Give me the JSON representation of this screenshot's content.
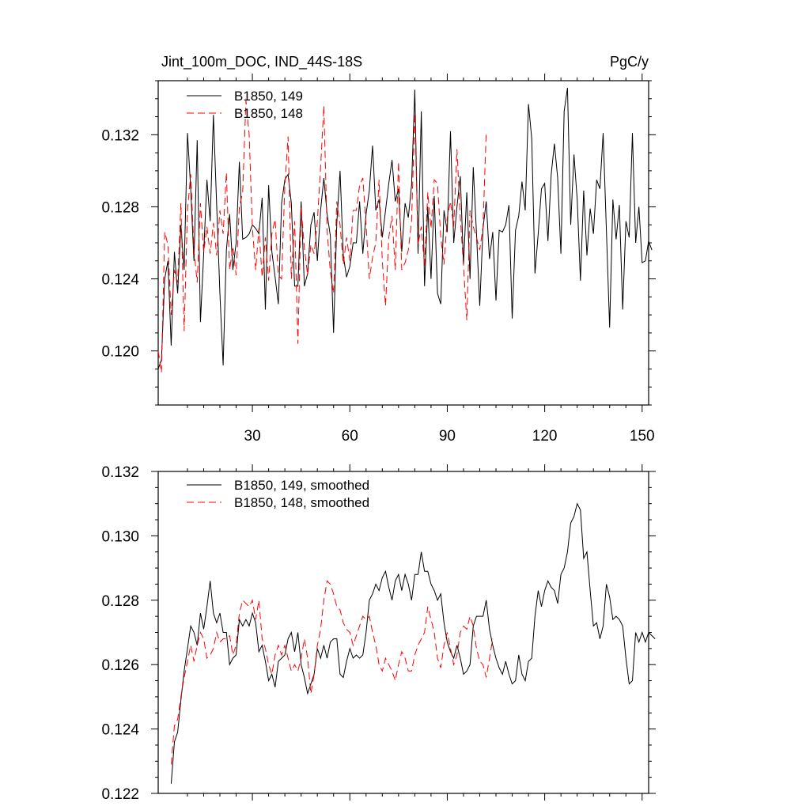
{
  "header": {
    "title": "Jint_100m_DOC, IND_44S-18S",
    "units": "PgC/y"
  },
  "colors": {
    "series_149": "#000000",
    "series_148": "#ff0000"
  },
  "chart_data": [
    {
      "type": "line",
      "title": "Jint_100m_DOC, IND_44S-18S",
      "xlabel": "",
      "ylabel": "",
      "xlim": [
        1,
        152
      ],
      "ylim": [
        0.117,
        0.135
      ],
      "xticks": [
        30,
        60,
        90,
        120,
        150
      ],
      "yticks": [
        0.12,
        0.124,
        0.128,
        0.132
      ],
      "legend_position": "top-left",
      "series": [
        {
          "name": "B1850, 149",
          "color": "#000000",
          "dash": "solid",
          "x_start": 1,
          "values": [
            0.119,
            0.1195,
            0.124,
            0.125,
            0.1203,
            0.1255,
            0.1232,
            0.127,
            0.1245,
            0.1321,
            0.129,
            0.125,
            0.1317,
            0.1216,
            0.1254,
            0.1295,
            0.1272,
            0.1331,
            0.1281,
            0.1232,
            0.1192,
            0.1256,
            0.1276,
            0.1245,
            0.126,
            0.1305,
            0.1262,
            0.1263,
            0.1265,
            0.127,
            0.1268,
            0.1265,
            0.1285,
            0.1223,
            0.1292,
            0.1255,
            0.1241,
            0.1226,
            0.1282,
            0.1295,
            0.1298,
            0.1282,
            0.1236,
            0.1236,
            0.1283,
            0.1236,
            0.1243,
            0.127,
            0.1277,
            0.125,
            0.1278,
            0.1296,
            0.1276,
            0.1264,
            0.121,
            0.1271,
            0.13,
            0.1253,
            0.1241,
            0.1247,
            0.126,
            0.126,
            0.1283,
            0.1254,
            0.1276,
            0.1289,
            0.1314,
            0.1278,
            0.1284,
            0.1263,
            0.1278,
            0.1293,
            0.1306,
            0.1283,
            0.129,
            0.1255,
            0.1282,
            0.1274,
            0.1292,
            0.1345,
            0.1254,
            0.1333,
            0.1236,
            0.128,
            0.124,
            0.1286,
            0.1232,
            0.1226,
            0.1278,
            0.1266,
            0.1322,
            0.126,
            0.128,
            0.1297,
            0.1248,
            0.1288,
            0.124,
            0.1302,
            0.1265,
            0.1225,
            0.1268,
            0.1283,
            0.1251,
            0.1266,
            0.1228,
            0.1267,
            0.1266,
            0.127,
            0.1281,
            0.1218,
            0.1267,
            0.1275,
            0.1294,
            0.1278,
            0.1337,
            0.1318,
            0.1243,
            0.1265,
            0.129,
            0.1293,
            0.1261,
            0.1298,
            0.1315,
            0.1296,
            0.1254,
            0.1333,
            0.1346,
            0.127,
            0.1309,
            0.1284,
            0.1239,
            0.1289,
            0.1253,
            0.1279,
            0.1265,
            0.1295,
            0.129,
            0.1321,
            0.1267,
            0.1213,
            0.1284,
            0.1262,
            0.1281,
            0.1223,
            0.1272,
            0.1263,
            0.1321,
            0.126,
            0.128,
            0.1249,
            0.125,
            0.1261,
            0.1256
          ]
        },
        {
          "name": "B1850, 148",
          "color": "#ff0000",
          "dash": "dashed",
          "x_start": 1,
          "values": [
            0.12,
            0.1188,
            0.1266,
            0.1259,
            0.122,
            0.1245,
            0.1238,
            0.1282,
            0.1211,
            0.1278,
            0.1298,
            0.1256,
            0.1238,
            0.1282,
            0.1255,
            0.1269,
            0.1254,
            0.1271,
            0.1253,
            0.1278,
            0.1265,
            0.1299,
            0.1245,
            0.1258,
            0.1242,
            0.128,
            0.1288,
            0.1339,
            0.132,
            0.1268,
            0.1245,
            0.1268,
            0.1241,
            0.1263,
            0.1239,
            0.1265,
            0.1273,
            0.1242,
            0.124,
            0.1292,
            0.1319,
            0.124,
            0.1272,
            0.1204,
            0.128,
            0.1257,
            0.1242,
            0.1259,
            0.1254,
            0.1272,
            0.1302,
            0.1336,
            0.1267,
            0.1244,
            0.1232,
            0.1283,
            0.127,
            0.1248,
            0.1263,
            0.125,
            0.1278,
            0.1278,
            0.1292,
            0.1296,
            0.127,
            0.124,
            0.1252,
            0.126,
            0.1295,
            0.125,
            0.1225,
            0.1263,
            0.1275,
            0.1245,
            0.1305,
            0.1245,
            0.1249,
            0.1256,
            0.1272,
            0.1332,
            0.1259,
            0.1269,
            0.1247,
            0.1288,
            0.1268,
            0.1295,
            0.1293,
            0.1263,
            0.1248,
            0.1274,
            0.1283,
            0.1269,
            0.1312,
            0.1274,
            0.1247,
            0.1217,
            0.1278,
            0.1269,
            0.1263,
            0.1256,
            0.1269,
            0.1322
          ]
        }
      ]
    },
    {
      "type": "line",
      "title": "",
      "xlabel": "",
      "ylabel": "",
      "xlim": [
        1,
        152
      ],
      "ylim": [
        0.122,
        0.132
      ],
      "xticks": [
        30,
        60,
        90,
        120,
        150
      ],
      "yticks": [
        0.122,
        0.124,
        0.126,
        0.128,
        0.13,
        0.132
      ],
      "legend_position": "top-left",
      "series": [
        {
          "name": "B1850, 149, smoothed",
          "color": "#000000",
          "dash": "solid",
          "x_start": 5,
          "values": [
            0.1223,
            0.1236,
            0.1239,
            0.1249,
            0.1258,
            0.1265,
            0.1272,
            0.127,
            0.1266,
            0.1276,
            0.1271,
            0.1278,
            0.1286,
            0.1276,
            0.1273,
            0.1276,
            0.127,
            0.127,
            0.126,
            0.1262,
            0.1263,
            0.1274,
            0.1272,
            0.1274,
            0.1272,
            0.1276,
            0.1273,
            0.1264,
            0.1266,
            0.1261,
            0.1255,
            0.1257,
            0.1253,
            0.1261,
            0.1262,
            0.1263,
            0.1268,
            0.127,
            0.1264,
            0.127,
            0.126,
            0.1256,
            0.1251,
            0.1254,
            0.1257,
            0.1265,
            0.1262,
            0.1266,
            0.1262,
            0.1267,
            0.1268,
            0.1268,
            0.1257,
            0.1256,
            0.1261,
            0.1265,
            0.1262,
            0.1263,
            0.1262,
            0.1263,
            0.127,
            0.128,
            0.1282,
            0.1285,
            0.1283,
            0.1287,
            0.1289,
            0.1284,
            0.128,
            0.1286,
            0.1288,
            0.1283,
            0.1288,
            0.1285,
            0.128,
            0.1288,
            0.1288,
            0.1295,
            0.1289,
            0.1289,
            0.1285,
            0.1283,
            0.128,
            0.1282,
            0.1273,
            0.1267,
            0.1264,
            0.1262,
            0.1266,
            0.1262,
            0.1257,
            0.1258,
            0.126,
            0.1272,
            0.1275,
            0.1275,
            0.1275,
            0.128,
            0.1271,
            0.1266,
            0.1262,
            0.1259,
            0.1257,
            0.1261,
            0.1257,
            0.1254,
            0.1255,
            0.1263,
            0.1257,
            0.1255,
            0.1261,
            0.1262,
            0.1275,
            0.1283,
            0.1278,
            0.1283,
            0.1286,
            0.1284,
            0.1283,
            0.1279,
            0.1288,
            0.129,
            0.1295,
            0.1304,
            0.1306,
            0.131,
            0.1308,
            0.1293,
            0.1295,
            0.1283,
            0.1272,
            0.1273,
            0.1268,
            0.1272,
            0.1285,
            0.1281,
            0.1274,
            0.1275,
            0.1274,
            0.1272,
            0.1262,
            0.1254,
            0.1255,
            0.127,
            0.1267,
            0.127,
            0.1267,
            0.127,
            0.1269,
            0.1268
          ]
        },
        {
          "name": "B1850, 148, smoothed",
          "color": "#ff0000",
          "dash": "dashed",
          "x_start": 5,
          "values": [
            0.1229,
            0.1241,
            0.1243,
            0.125,
            0.1256,
            0.1261,
            0.1266,
            0.1261,
            0.1266,
            0.127,
            0.1268,
            0.1262,
            0.1263,
            0.1265,
            0.127,
            0.1267,
            0.1268,
            0.1268,
            0.1269,
            0.1263,
            0.1266,
            0.1276,
            0.128,
            0.1279,
            0.1278,
            0.128,
            0.1274,
            0.128,
            0.1268,
            0.1265,
            0.126,
            0.1257,
            0.1263,
            0.1266,
            0.1263,
            0.1266,
            0.1262,
            0.1258,
            0.126,
            0.1258,
            0.1262,
            0.1268,
            0.1262,
            0.1251,
            0.1257,
            0.1266,
            0.1271,
            0.128,
            0.1286,
            0.1285,
            0.1282,
            0.1278,
            0.1277,
            0.1273,
            0.1271,
            0.127,
            0.1266,
            0.1269,
            0.1272,
            0.1275,
            0.1274,
            0.1275,
            0.127,
            0.1266,
            0.126,
            0.1258,
            0.1262,
            0.126,
            0.1258,
            0.1255,
            0.126,
            0.1264,
            0.1262,
            0.1258,
            0.1258,
            0.1263,
            0.1266,
            0.1268,
            0.127,
            0.1278,
            0.1274,
            0.127,
            0.1262,
            0.1259,
            0.1266,
            0.127,
            0.1265,
            0.126,
            0.1263,
            0.127,
            0.1272,
            0.1271,
            0.1275,
            0.1272,
            0.1265,
            0.1261,
            0.126,
            0.1256,
            0.1262,
            0.1268
          ]
        }
      ]
    }
  ]
}
